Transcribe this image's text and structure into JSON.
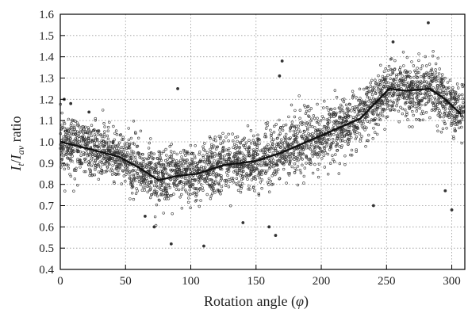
{
  "chart_data": {
    "type": "scatter",
    "xlabel_text": "Rotation angle (",
    "xlabel_symbol": "φ",
    "xlabel_close": ")",
    "ylabel_I": "I",
    "ylabel_sub_t": "t",
    "ylabel_slash": "/",
    "ylabel_sub_av": "av",
    "ylabel_word": " ratio",
    "xlim": [
      0,
      310
    ],
    "ylim": [
      0.4,
      1.6
    ],
    "xticks": [
      0,
      50,
      100,
      150,
      200,
      250,
      300
    ],
    "yticks": [
      0.4,
      0.5,
      0.6,
      0.7,
      0.8,
      0.9,
      1.0,
      1.1,
      1.2,
      1.3,
      1.4,
      1.5,
      1.6
    ],
    "ytick_labels": [
      "0.4",
      "0.5",
      "0.6",
      "0.7",
      "0.8",
      "0.9",
      "1.0",
      "1.1",
      "1.2",
      "1.3",
      "1.4",
      "1.5",
      "1.6"
    ],
    "grid": true,
    "grid_style": "dotted",
    "scatter_count": 3200,
    "scatter_spread_sd": 0.065,
    "line": {
      "x": [
        0,
        20,
        45,
        60,
        75,
        90,
        105,
        125,
        150,
        170,
        200,
        230,
        252,
        265,
        283,
        295,
        307
      ],
      "y": [
        1.0,
        0.97,
        0.93,
        0.88,
        0.82,
        0.84,
        0.85,
        0.89,
        0.91,
        0.95,
        1.03,
        1.11,
        1.25,
        1.24,
        1.25,
        1.2,
        1.13
      ]
    },
    "outliers": [
      {
        "x": 3,
        "y": 1.2
      },
      {
        "x": 8,
        "y": 1.18
      },
      {
        "x": 22,
        "y": 1.14
      },
      {
        "x": 72,
        "y": 0.6
      },
      {
        "x": 85,
        "y": 0.52
      },
      {
        "x": 90,
        "y": 1.25
      },
      {
        "x": 110,
        "y": 0.51
      },
      {
        "x": 140,
        "y": 0.62
      },
      {
        "x": 165,
        "y": 0.56
      },
      {
        "x": 170,
        "y": 1.38
      },
      {
        "x": 168,
        "y": 1.31
      },
      {
        "x": 240,
        "y": 0.7
      },
      {
        "x": 255,
        "y": 1.47
      },
      {
        "x": 282,
        "y": 1.56
      },
      {
        "x": 300,
        "y": 0.68
      },
      {
        "x": 295,
        "y": 0.77
      },
      {
        "x": 160,
        "y": 0.6
      },
      {
        "x": 65,
        "y": 0.65
      }
    ],
    "colors": {
      "points": "#333333",
      "line": "#111111",
      "grid": "#999999",
      "axis": "#000000"
    }
  }
}
